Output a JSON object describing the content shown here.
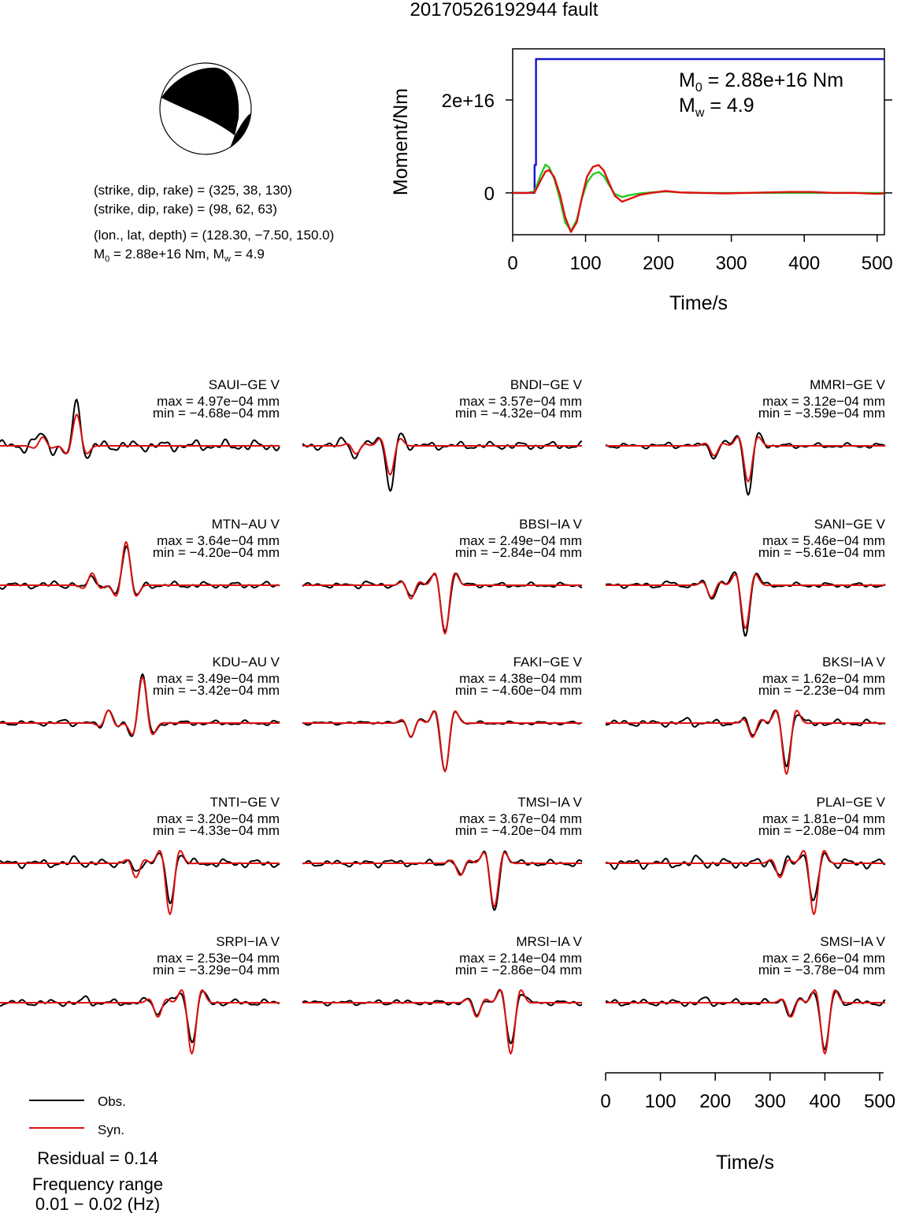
{
  "title": "20170526192944 fault",
  "mechanism": {
    "plane1": "(strike, dip, rake) = (325, 38, 130)",
    "plane2": "(strike, dip, rake) = (98, 62, 63)",
    "location": "(lon., lat, depth) = (128.30, −7.50, 150.0)",
    "m0_prefix": "M",
    "m0_sub": "0",
    "m0_rest": " = 2.88e+16 Nm, M",
    "mw_sub": "w",
    "mw_rest": " = 4.9"
  },
  "colors": {
    "observed": "#000000",
    "synthetic": "#dd1111",
    "moment_rate": "#1515cc",
    "stf_alt": "#22cc22"
  },
  "chart_data": [
    {
      "type": "line",
      "name": "moment-function",
      "xlabel": "Time/s",
      "ylabel": "Moment/Nm",
      "xlim": [
        0,
        510
      ],
      "ylim": [
        -9000000000000000.0,
        3.1e+16
      ],
      "x_ticks": [
        "0",
        "100",
        "200",
        "300",
        "400",
        "500"
      ],
      "y_ticks": [
        "0",
        "2e+16"
      ],
      "annotation": {
        "m0_label": "M",
        "m0_sub": "0",
        "m0_value": " = 2.88e+16 Nm",
        "mw_label": "M",
        "mw_sub": "w",
        "mw_value": " = 4.9"
      },
      "series": [
        {
          "color": "blue",
          "x": [
            0,
            30,
            30,
            32,
            32,
            510
          ],
          "y": [
            0,
            0,
            6000000000000000.0,
            6000000000000000.0,
            2.88e+16,
            2.88e+16
          ]
        },
        {
          "color": "red",
          "x": [
            0,
            20,
            30,
            38,
            45,
            50,
            57,
            65,
            72,
            80,
            88,
            95,
            102,
            110,
            118,
            125,
            132,
            140,
            150,
            160,
            175,
            190,
            210,
            230,
            260,
            290,
            320,
            350,
            380,
            410,
            440,
            470,
            500,
            510
          ],
          "y": [
            0,
            0,
            100000000000000.0,
            2600000000000000.0,
            4600000000000000.0,
            4900000000000000.0,
            3400000000000000.0,
            -500000000000000.0,
            -5200000000000000.0,
            -8400000000000000.0,
            -6300000000000000.0,
            -1000000000000000.0,
            3500000000000000.0,
            5600000000000000.0,
            6000000000000000.0,
            4800000000000000.0,
            2200000000000000.0,
            -600000000000000.0,
            -1900000000000000.0,
            -1300000000000000.0,
            -400000000000000.0,
            0,
            400000000000000.0,
            100000000000000.0,
            0,
            -100000000000000.0,
            0,
            100000000000000.0,
            200000000000000.0,
            200000000000000.0,
            0,
            0,
            -200000000000000.0,
            -100000000000000.0
          ]
        },
        {
          "color": "green",
          "x": [
            0,
            20,
            30,
            38,
            45,
            50,
            57,
            65,
            72,
            80,
            88,
            95,
            102,
            110,
            118,
            125,
            132,
            140,
            150,
            160,
            175,
            190,
            210,
            230,
            260,
            290,
            320,
            350,
            380,
            410,
            440,
            470,
            500,
            510
          ],
          "y": [
            0,
            0,
            300000000000000.0,
            3700000000000000.0,
            6100000000000000.0,
            5500000000000000.0,
            3000000000000000.0,
            -1500000000000000.0,
            -6300000000000000.0,
            -8200000000000000.0,
            -5800000000000000.0,
            -1200000000000000.0,
            2200000000000000.0,
            4000000000000000.0,
            4500000000000000.0,
            3600000000000000.0,
            1700000000000000.0,
            -200000000000000.0,
            -900000000000000.0,
            -500000000000000.0,
            -100000000000000.0,
            100000000000000.0,
            300000000000000.0,
            100000000000000.0,
            0,
            0,
            0,
            0,
            0,
            0,
            0,
            0,
            0,
            0
          ]
        }
      ]
    },
    {
      "type": "line",
      "name": "waveform-comparison",
      "xlabel": "Time/s",
      "xlim": [
        0,
        510
      ],
      "x_ticks": [
        "0",
        "100",
        "200",
        "300",
        "400",
        "500"
      ],
      "legend": {
        "observed": "Obs.",
        "synthetic": "Syn."
      },
      "residual": "Residual = 0.14",
      "freq_label": "Frequency range",
      "freq_value": "0.01 − 0.02 (Hz)",
      "stations": [
        {
          "name": "SAUI−GE V",
          "max": "max = 4.97e−04 mm",
          "min": "min = −4.68e−04 mm",
          "center": 140,
          "pol": 1,
          "obs": 0.9,
          "syn": 0.65,
          "scale": 0.85,
          "pre": 0.5,
          "noise": 0.35
        },
        {
          "name": "BNDI−GE V",
          "max": "max = 3.57e−04 mm",
          "min": "min = −4.32e−04 mm",
          "center": 160,
          "pol": -1,
          "obs": 0.95,
          "syn": 0.6,
          "scale": 0.85,
          "pre": 0.4,
          "noise": 0.25
        },
        {
          "name": "MMRI−GE V",
          "max": "max = 3.12e−04 mm",
          "min": "min = −3.59e−04 mm",
          "center": 260,
          "pol": -1,
          "obs": 0.95,
          "syn": 0.7,
          "scale": 0.9,
          "pre": 0.15,
          "noise": 0.15
        },
        {
          "name": "MTN−AU V",
          "max": "max = 3.64e−04 mm",
          "min": "min = −4.20e−04 mm",
          "center": 230,
          "pol": 1,
          "obs": 0.8,
          "syn": 0.85,
          "scale": 0.9,
          "pre": 0.15,
          "noise": 0.2
        },
        {
          "name": "BBSI−IA V",
          "max": "max = 2.49e−04 mm",
          "min": "min = −2.84e−04 mm",
          "center": 260,
          "pol": -1,
          "obs": 0.9,
          "syn": 0.95,
          "scale": 0.9,
          "pre": 0.2,
          "noise": 0.15
        },
        {
          "name": "SANI−GE V",
          "max": "max = 5.46e−04 mm",
          "min": "min = −5.61e−04 mm",
          "center": 255,
          "pol": -1,
          "obs": 0.95,
          "syn": 0.85,
          "scale": 0.9,
          "pre": 0.2,
          "noise": 0.15
        },
        {
          "name": "KDU−AU V",
          "max": "max = 3.49e−04 mm",
          "min": "min = −3.42e−04 mm",
          "center": 260,
          "pol": 1,
          "obs": 0.95,
          "syn": 0.9,
          "scale": 0.9,
          "pre": 0.15,
          "noise": 0.15
        },
        {
          "name": "FAKI−GE V",
          "max": "max = 4.38e−04 mm",
          "min": "min = −4.60e−04 mm",
          "center": 260,
          "pol": -1,
          "obs": 0.95,
          "syn": 0.95,
          "scale": 0.9,
          "pre": 0.15,
          "noise": 0.1
        },
        {
          "name": "BKSI−IA V",
          "max": "max = 1.62e−04 mm",
          "min": "min = −2.23e−04 mm",
          "center": 330,
          "pol": -1,
          "obs": 0.8,
          "syn": 1.0,
          "scale": 0.9,
          "pre": 0.2,
          "noise": 0.2
        },
        {
          "name": "TNTI−GE V",
          "max": "max = 3.20e−04 mm",
          "min": "min = −4.33e−04 mm",
          "center": 310,
          "pol": -1,
          "obs": 0.75,
          "syn": 1.0,
          "scale": 0.9,
          "pre": 0.3,
          "noise": 0.25
        },
        {
          "name": "TMSI−IA V",
          "max": "max = 3.67e−04 mm",
          "min": "min = −4.20e−04 mm",
          "center": 350,
          "pol": -1,
          "obs": 0.95,
          "syn": 0.85,
          "scale": 0.9,
          "pre": 0.2,
          "noise": 0.2
        },
        {
          "name": "PLAI−GE V",
          "max": "max = 1.81e−04 mm",
          "min": "min = −2.08e−04 mm",
          "center": 380,
          "pol": -1,
          "obs": 0.8,
          "syn": 1.0,
          "scale": 0.9,
          "pre": 0.35,
          "noise": 0.3
        },
        {
          "name": "SRPI−IA V",
          "max": "max = 2.53e−04 mm",
          "min": "min = −3.29e−04 mm",
          "center": 350,
          "pol": -1,
          "obs": 0.75,
          "syn": 1.0,
          "scale": 0.9,
          "pre": 0.3,
          "noise": 0.2
        },
        {
          "name": "MRSI−IA V",
          "max": "max = 2.14e−04 mm",
          "min": "min = −2.86e−04 mm",
          "center": 380,
          "pol": -1,
          "obs": 0.8,
          "syn": 1.0,
          "scale": 0.9,
          "pre": 0.15,
          "noise": 0.15
        },
        {
          "name": "SMSI−IA V",
          "max": "max = 2.66e−04 mm",
          "min": "min = −3.78e−04 mm",
          "center": 400,
          "pol": -1,
          "obs": 0.95,
          "syn": 1.0,
          "scale": 0.9,
          "pre": 0.2,
          "noise": 0.2
        }
      ]
    }
  ]
}
